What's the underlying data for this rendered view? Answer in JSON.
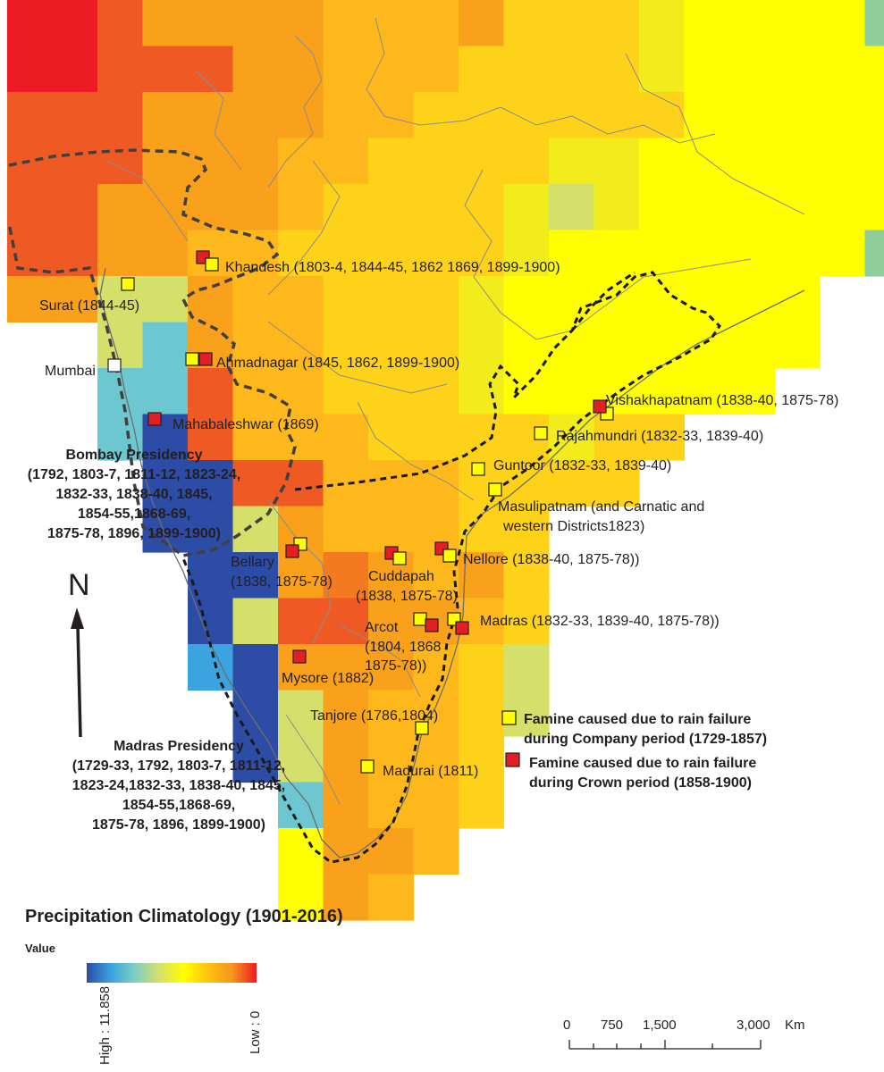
{
  "map": {
    "north_label": "N",
    "places": [
      {
        "id": "khandesh",
        "text": "Khandesh (1803-4, 1844-45, 1862 1869, 1899-1900)"
      },
      {
        "id": "surat",
        "text": "Surat (1844-45)"
      },
      {
        "id": "mumbai",
        "text": "Mumbai"
      },
      {
        "id": "ahmadnagar",
        "text": "Ahmadnagar (1845, 1862, 1899-1900)"
      },
      {
        "id": "mahabaleshwar",
        "text": "Mahabaleshwar (1869)"
      },
      {
        "id": "vishakhapatnam",
        "text": "Vishakhapatnam (1838-40, 1875-78)"
      },
      {
        "id": "rajahmundri",
        "text": "Rajahmundri (1832-33, 1839-40)"
      },
      {
        "id": "guntoor",
        "text": "Guntoor (1832-33, 1839-40)"
      },
      {
        "id": "masulipatnam",
        "lines": [
          "Masulipatnam (and Carnatic and",
          "western Districts1823)"
        ]
      },
      {
        "id": "bellary",
        "lines": [
          "Bellary",
          "(1838, 1875-78)"
        ]
      },
      {
        "id": "cuddapah",
        "lines": [
          "Cuddapah",
          "(1838, 1875-78)"
        ]
      },
      {
        "id": "nellore",
        "text": "Nellore (1838-40, 1875-78))"
      },
      {
        "id": "arcot",
        "lines": [
          "Arcot",
          "(1804, 1868",
          "1875-78))"
        ]
      },
      {
        "id": "madras",
        "text": "Madras (1832-33, 1839-40, 1875-78))"
      },
      {
        "id": "mysore",
        "text": "Mysore (1882)"
      },
      {
        "id": "tanjore",
        "text": "Tanjore (1786,1804)"
      },
      {
        "id": "madurai",
        "text": "Madurai (1811)"
      }
    ],
    "regions": {
      "bombay": [
        "Bombay Presidency",
        "(1792, 1803-7, 1811-12, 1823-24,",
        "1832-33, 1838-40, 1845,",
        "1854-55,1868-69,",
        "1875-78, 1896, 1899-1900)"
      ],
      "madras": [
        "Madras Presidency",
        "(1729-33, 1792, 1803-7, 1811-12,",
        "1823-24,1832-33, 1838-40, 1845,",
        "1854-55,1868-69,",
        "1875-78, 1896, 1899-1900)"
      ]
    }
  },
  "legend": {
    "company_lines": [
      "Famine caused due to rain failure",
      "during Company period (1729-1857)"
    ],
    "crown_lines": [
      "Famine caused due to rain failure",
      "during Crown period (1858-1900)"
    ],
    "company_color": "#ffff00",
    "crown_color": "#e31e24"
  },
  "colorbar": {
    "title": "Precipitation Climatology (1901-2016)",
    "value_label": "Value",
    "high_label": "High : 11.858",
    "low_label": "Low : 0",
    "colors": [
      "#2c4ca6",
      "#3aa3e0",
      "#7fcfc2",
      "#d5e06a",
      "#ffff00",
      "#ffc20e",
      "#f7941d",
      "#ed1c24"
    ]
  },
  "scalebar": {
    "ticks": [
      "0",
      "750",
      "1,500",
      "3,000"
    ],
    "unit": "Km"
  }
}
